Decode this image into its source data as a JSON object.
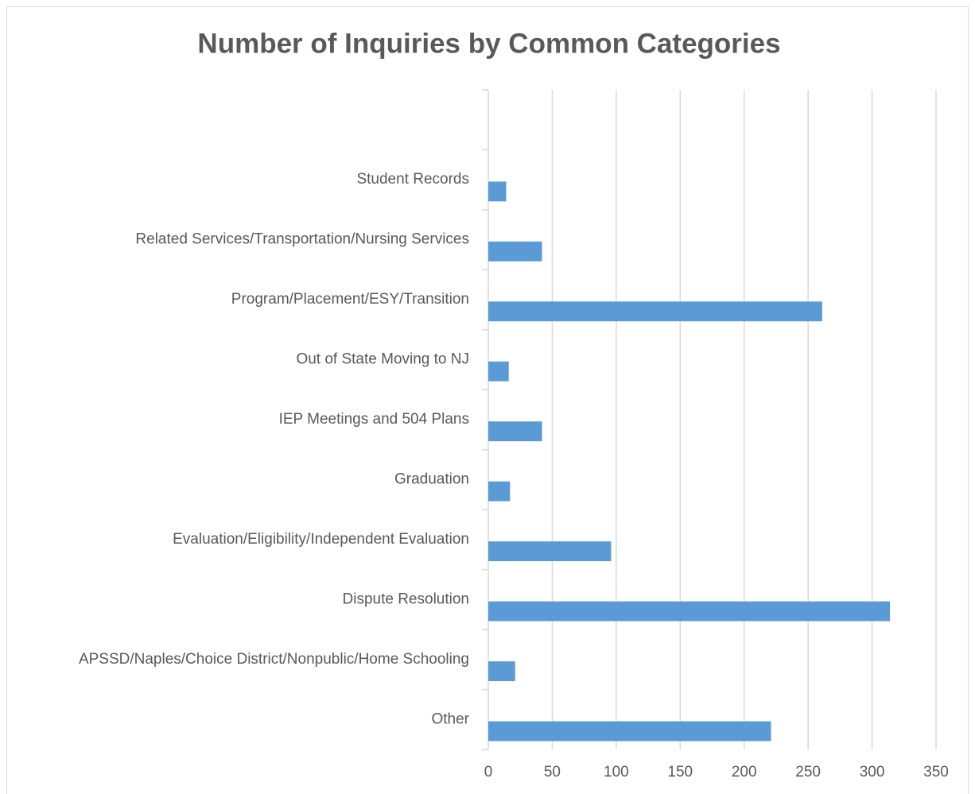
{
  "chart_data": {
    "type": "bar",
    "orientation": "horizontal",
    "title": "Number of Inquiries by Common Categories",
    "categories": [
      null,
      "Student Records",
      "Related Services/Transportation/Nursing Services",
      "Program/Placement/ESY/Transition",
      "Out of State Moving to NJ",
      "IEP Meetings and 504 Plans",
      "Graduation",
      "Evaluation/Eligibility/Independent Evaluation",
      "Dispute Resolution",
      "APSSD/Naples/Choice District/Nonpublic/Home Schooling",
      "Other"
    ],
    "values": [
      null,
      14,
      42,
      261,
      16,
      42,
      17,
      96,
      314,
      21,
      221
    ],
    "color": "#5b9bd5",
    "xlim": [
      0,
      350
    ],
    "xticks": [
      0,
      50,
      100,
      150,
      200,
      250,
      300,
      350
    ],
    "grid": true
  }
}
